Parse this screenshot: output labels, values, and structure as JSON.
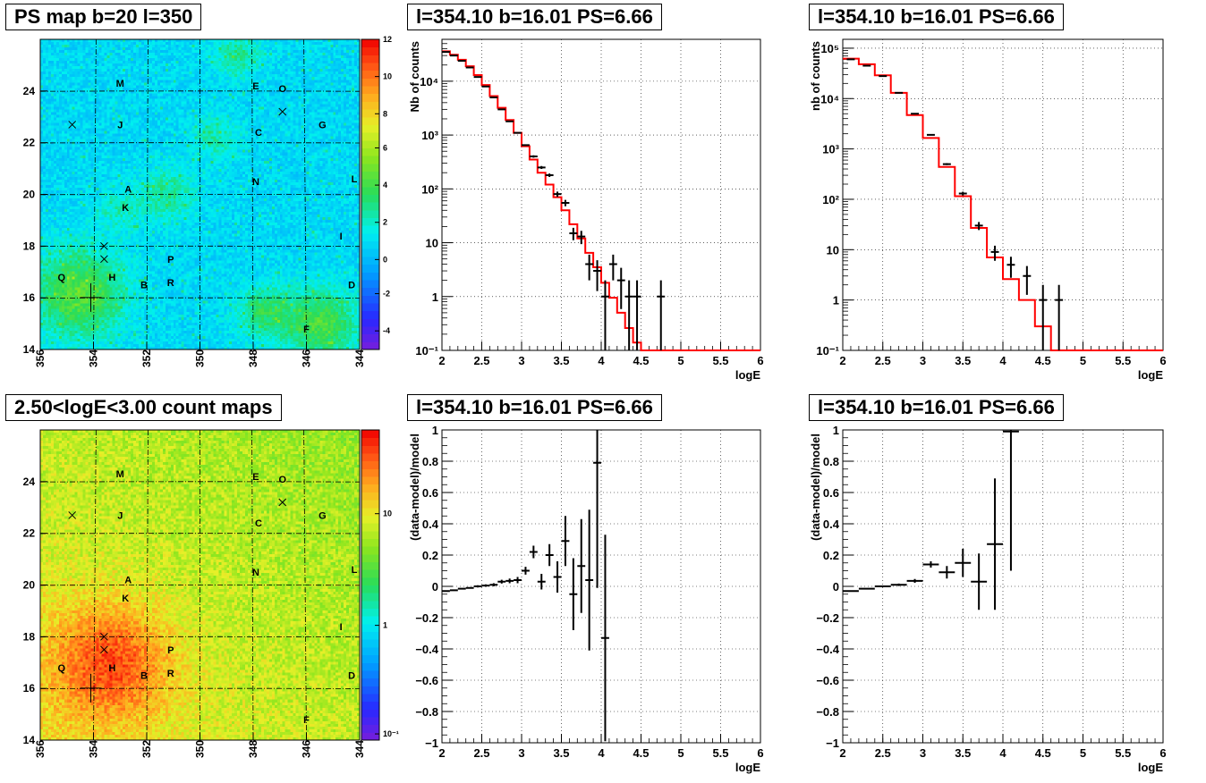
{
  "panel_titles": {
    "map_top": "PS map b=20 l=350",
    "map_bottom": "2.50<logE<3.00 count maps",
    "spec_left": "l=354.10 b=16.01 PS=6.66",
    "spec_right": "l=354.10 b=16.01 PS=6.66",
    "res_left": "l=354.10 b=16.01 PS=6.66",
    "res_right": "l=354.10 b=16.01 PS=6.66"
  },
  "chart_data": [
    {
      "id": "map_top",
      "type": "heatmap",
      "title": "PS map b=20 l=350",
      "x_ticks": [
        "356",
        "354",
        "352",
        "350",
        "348",
        "346",
        "344"
      ],
      "x_range": [
        356,
        344
      ],
      "y_ticks": [
        "14",
        "16",
        "18",
        "20",
        "22",
        "24"
      ],
      "y_range": [
        14,
        26
      ],
      "colorbar": {
        "scale": "linear",
        "range": [
          -5,
          12
        ],
        "ticks": [
          "-4",
          "-2",
          "0",
          "2",
          "4",
          "6",
          "8",
          "10",
          "12"
        ]
      },
      "sources": [
        {
          "label": "M",
          "l": 353.0,
          "b": 24.3
        },
        {
          "label": "E",
          "l": 347.9,
          "b": 24.2
        },
        {
          "label": "O",
          "l": 346.9,
          "b": 24.1
        },
        {
          "label": "J",
          "l": 353.0,
          "b": 22.7
        },
        {
          "label": "C",
          "l": 347.8,
          "b": 22.4
        },
        {
          "label": "G",
          "l": 345.4,
          "b": 22.7
        },
        {
          "label": "A",
          "l": 352.7,
          "b": 20.2
        },
        {
          "label": "N",
          "l": 347.9,
          "b": 20.5
        },
        {
          "label": "L",
          "l": 344.2,
          "b": 20.6
        },
        {
          "label": "K",
          "l": 352.8,
          "b": 19.5
        },
        {
          "label": "I",
          "l": 344.7,
          "b": 18.4
        },
        {
          "label": "P",
          "l": 351.1,
          "b": 17.5
        },
        {
          "label": "Q",
          "l": 355.2,
          "b": 16.8
        },
        {
          "label": "H",
          "l": 353.3,
          "b": 16.8
        },
        {
          "label": "B",
          "l": 352.1,
          "b": 16.5
        },
        {
          "label": "R",
          "l": 351.1,
          "b": 16.6
        },
        {
          "label": "D",
          "l": 344.3,
          "b": 16.5
        },
        {
          "label": "F",
          "l": 346.0,
          "b": 14.8
        }
      ],
      "markers": [
        {
          "l": 354.8,
          "b": 22.7
        },
        {
          "l": 346.9,
          "b": 23.2
        },
        {
          "l": 353.6,
          "b": 18.0
        },
        {
          "l": 353.6,
          "b": 17.5
        }
      ]
    },
    {
      "id": "map_bottom",
      "type": "heatmap",
      "title": "2.50<logE<3.00 count maps",
      "x_ticks": [
        "356",
        "354",
        "352",
        "350",
        "348",
        "346",
        "344"
      ],
      "x_range": [
        356,
        344
      ],
      "y_ticks": [
        "14",
        "16",
        "18",
        "20",
        "22",
        "24"
      ],
      "y_range": [
        14,
        26
      ],
      "colorbar": {
        "scale": "log",
        "range": [
          0.08,
          60
        ],
        "ticks": [
          "10⁻¹",
          "1",
          "10"
        ]
      }
    },
    {
      "id": "spec_left",
      "type": "line",
      "title": "l=354.10 b=16.01 PS=6.66",
      "xlabel": "logE",
      "ylabel": "Nb of counts",
      "xlim": [
        2,
        6
      ],
      "ylim": [
        0.1,
        60000
      ],
      "yscale": "log",
      "x_ticks": [
        "2",
        "2.5",
        "3",
        "3.5",
        "4",
        "4.5",
        "5",
        "5.5",
        "6"
      ],
      "y_ticks": [
        "10⁻¹",
        "1",
        "10",
        "10²",
        "10³",
        "10⁴"
      ],
      "grid": true,
      "data": [
        {
          "x": 2.05,
          "y": 35000
        },
        {
          "x": 2.15,
          "y": 30000
        },
        {
          "x": 2.25,
          "y": 24000
        },
        {
          "x": 2.35,
          "y": 18000
        },
        {
          "x": 2.45,
          "y": 12000
        },
        {
          "x": 2.55,
          "y": 8000
        },
        {
          "x": 2.65,
          "y": 5000
        },
        {
          "x": 2.75,
          "y": 3000
        },
        {
          "x": 2.85,
          "y": 1800
        },
        {
          "x": 2.95,
          "y": 1100
        },
        {
          "x": 3.05,
          "y": 650
        },
        {
          "x": 3.15,
          "y": 400
        },
        {
          "x": 3.25,
          "y": 250
        },
        {
          "x": 3.35,
          "y": 180
        },
        {
          "x": 3.45,
          "y": 80
        },
        {
          "x": 3.55,
          "y": 55
        },
        {
          "x": 3.65,
          "y": 15
        },
        {
          "x": 3.75,
          "y": 13
        },
        {
          "x": 3.85,
          "y": 4
        },
        {
          "x": 3.95,
          "y": 3
        },
        {
          "x": 4.05,
          "y": 1
        },
        {
          "x": 4.15,
          "y": 4
        },
        {
          "x": 4.25,
          "y": 2
        },
        {
          "x": 4.35,
          "y": 1
        },
        {
          "x": 4.45,
          "y": 1
        },
        {
          "x": 4.75,
          "y": 1
        }
      ],
      "model_steps": [
        {
          "x": 2.0,
          "y": 36000
        },
        {
          "x": 2.1,
          "y": 31000
        },
        {
          "x": 2.2,
          "y": 25000
        },
        {
          "x": 2.3,
          "y": 19000
        },
        {
          "x": 2.4,
          "y": 13000
        },
        {
          "x": 2.5,
          "y": 8500
        },
        {
          "x": 2.6,
          "y": 5300
        },
        {
          "x": 2.7,
          "y": 3200
        },
        {
          "x": 2.8,
          "y": 1900
        },
        {
          "x": 2.9,
          "y": 1100
        },
        {
          "x": 3.0,
          "y": 620
        },
        {
          "x": 3.1,
          "y": 350
        },
        {
          "x": 3.2,
          "y": 200
        },
        {
          "x": 3.3,
          "y": 120
        },
        {
          "x": 3.4,
          "y": 70
        },
        {
          "x": 3.5,
          "y": 40
        },
        {
          "x": 3.6,
          "y": 22
        },
        {
          "x": 3.7,
          "y": 12
        },
        {
          "x": 3.8,
          "y": 6.5
        },
        {
          "x": 3.9,
          "y": 3.5
        },
        {
          "x": 4.0,
          "y": 1.8
        },
        {
          "x": 4.1,
          "y": 0.95
        },
        {
          "x": 4.2,
          "y": 0.5
        },
        {
          "x": 4.3,
          "y": 0.26
        },
        {
          "x": 4.4,
          "y": 0.14
        },
        {
          "x": 4.5,
          "y": 0.1
        },
        {
          "x": 6.0,
          "y": 0.1
        }
      ]
    },
    {
      "id": "spec_right",
      "type": "line",
      "title": "l=354.10 b=16.01 PS=6.66",
      "xlabel": "logE",
      "ylabel": "nb of counts",
      "xlim": [
        2,
        6
      ],
      "ylim": [
        0.1,
        150000
      ],
      "yscale": "log",
      "x_ticks": [
        "2",
        "2.5",
        "3",
        "3.5",
        "4",
        "4.5",
        "5",
        "5.5",
        "6"
      ],
      "y_ticks": [
        "10⁻¹",
        "1",
        "10",
        "10²",
        "10³",
        "10⁴",
        "10⁵"
      ],
      "grid": true,
      "data": [
        {
          "x": 2.1,
          "y": 60000
        },
        {
          "x": 2.3,
          "y": 45000
        },
        {
          "x": 2.5,
          "y": 28000
        },
        {
          "x": 2.7,
          "y": 13000
        },
        {
          "x": 2.9,
          "y": 5000
        },
        {
          "x": 3.1,
          "y": 1900
        },
        {
          "x": 3.3,
          "y": 500
        },
        {
          "x": 3.5,
          "y": 130
        },
        {
          "x": 3.7,
          "y": 30
        },
        {
          "x": 3.9,
          "y": 9
        },
        {
          "x": 4.1,
          "y": 5
        },
        {
          "x": 4.3,
          "y": 3
        },
        {
          "x": 4.5,
          "y": 1
        },
        {
          "x": 4.7,
          "y": 1
        }
      ],
      "model_steps": [
        {
          "x": 2.0,
          "y": 62000
        },
        {
          "x": 2.2,
          "y": 48000
        },
        {
          "x": 2.4,
          "y": 29000
        },
        {
          "x": 2.6,
          "y": 13000
        },
        {
          "x": 2.8,
          "y": 4700
        },
        {
          "x": 3.0,
          "y": 1650
        },
        {
          "x": 3.2,
          "y": 440
        },
        {
          "x": 3.4,
          "y": 115
        },
        {
          "x": 3.6,
          "y": 27
        },
        {
          "x": 3.8,
          "y": 7
        },
        {
          "x": 4.0,
          "y": 2.6
        },
        {
          "x": 4.2,
          "y": 1.0
        },
        {
          "x": 4.4,
          "y": 0.3
        },
        {
          "x": 4.6,
          "y": 0.1
        },
        {
          "x": 6.0,
          "y": 0.1
        }
      ]
    },
    {
      "id": "res_left",
      "type": "scatter",
      "title": "l=354.10 b=16.01 PS=6.66",
      "xlabel": "logE",
      "ylabel": "(data-model)/model",
      "xlim": [
        2,
        6
      ],
      "ylim": [
        -1,
        1
      ],
      "x_ticks": [
        "2",
        "2.5",
        "3",
        "3.5",
        "4",
        "4.5",
        "5",
        "5.5",
        "6"
      ],
      "y_ticks": [
        "−1",
        "−0.8",
        "−0.6",
        "−0.4",
        "−0.2",
        "0",
        "0.2",
        "0.4",
        "0.6",
        "0.8",
        "1"
      ],
      "grid": true,
      "data": [
        {
          "x": 2.05,
          "y": -0.03,
          "err": 0.005
        },
        {
          "x": 2.15,
          "y": -0.025,
          "err": 0.005
        },
        {
          "x": 2.25,
          "y": -0.015,
          "err": 0.005
        },
        {
          "x": 2.35,
          "y": -0.01,
          "err": 0.006
        },
        {
          "x": 2.45,
          "y": 0.0,
          "err": 0.007
        },
        {
          "x": 2.55,
          "y": 0.005,
          "err": 0.008
        },
        {
          "x": 2.65,
          "y": 0.01,
          "err": 0.01
        },
        {
          "x": 2.75,
          "y": 0.03,
          "err": 0.012
        },
        {
          "x": 2.85,
          "y": 0.035,
          "err": 0.015
        },
        {
          "x": 2.95,
          "y": 0.04,
          "err": 0.02
        },
        {
          "x": 3.05,
          "y": 0.1,
          "err": 0.025
        },
        {
          "x": 3.15,
          "y": 0.22,
          "err": 0.04
        },
        {
          "x": 3.25,
          "y": 0.03,
          "err": 0.05
        },
        {
          "x": 3.35,
          "y": 0.2,
          "err": 0.07
        },
        {
          "x": 3.45,
          "y": 0.06,
          "err": 0.1
        },
        {
          "x": 3.55,
          "y": 0.29,
          "err": 0.16
        },
        {
          "x": 3.65,
          "y": -0.05,
          "err": 0.23
        },
        {
          "x": 3.75,
          "y": 0.13,
          "err": 0.3
        },
        {
          "x": 3.85,
          "y": 0.04,
          "err": 0.45
        },
        {
          "x": 3.95,
          "y": 0.79,
          "err": 0.8
        },
        {
          "x": 4.05,
          "y": -0.33,
          "err": 0.66
        }
      ]
    },
    {
      "id": "res_right",
      "type": "scatter",
      "title": "l=354.10 b=16.01 PS=6.66",
      "xlabel": "logE",
      "ylabel": "(data-model)/model",
      "xlim": [
        2,
        6
      ],
      "ylim": [
        -1,
        1
      ],
      "x_ticks": [
        "2",
        "2.5",
        "3",
        "3.5",
        "4",
        "4.5",
        "5",
        "5.5",
        "6"
      ],
      "y_ticks": [
        "−1",
        "−0.8",
        "−0.6",
        "−0.4",
        "−0.2",
        "0",
        "0.2",
        "0.4",
        "0.6",
        "0.8",
        "1"
      ],
      "grid": true,
      "data": [
        {
          "x": 2.1,
          "y": -0.03,
          "err": 0.004
        },
        {
          "x": 2.3,
          "y": -0.015,
          "err": 0.005
        },
        {
          "x": 2.5,
          "y": 0.0,
          "err": 0.006
        },
        {
          "x": 2.7,
          "y": 0.01,
          "err": 0.008
        },
        {
          "x": 2.9,
          "y": 0.035,
          "err": 0.012
        },
        {
          "x": 3.1,
          "y": 0.14,
          "err": 0.02
        },
        {
          "x": 3.3,
          "y": 0.09,
          "err": 0.04
        },
        {
          "x": 3.5,
          "y": 0.15,
          "err": 0.09
        },
        {
          "x": 3.7,
          "y": 0.03,
          "err": 0.18
        },
        {
          "x": 3.9,
          "y": 0.27,
          "err": 0.42
        },
        {
          "x": 4.1,
          "y": 0.99,
          "err": 0.89
        }
      ]
    }
  ]
}
